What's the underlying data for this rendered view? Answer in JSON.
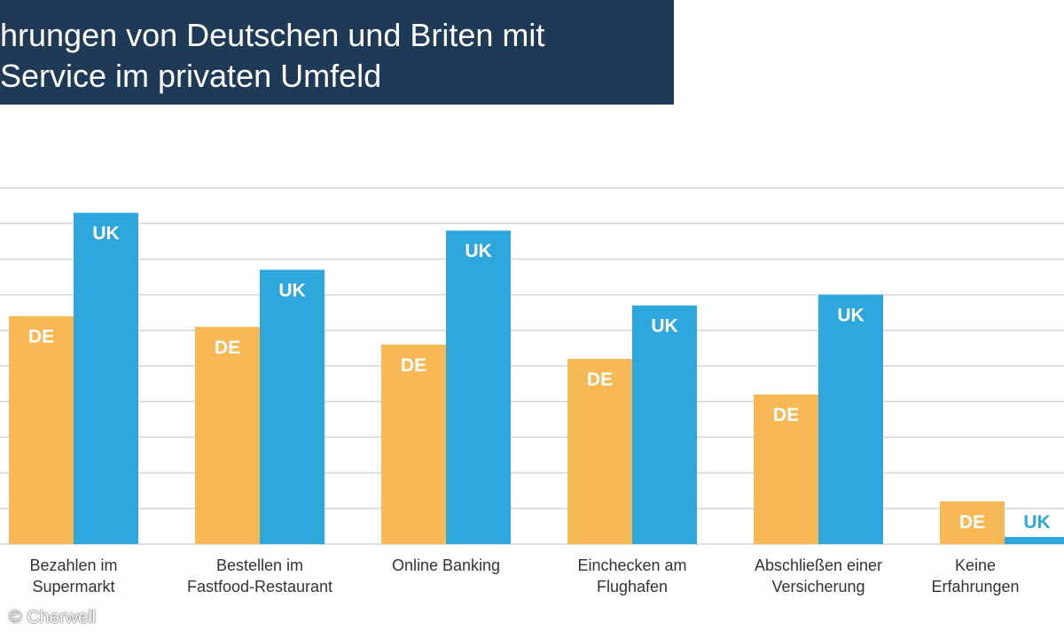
{
  "title": {
    "line1": "hrungen von Deutschen und Briten mit",
    "line2": "Service im privaten Umfeld"
  },
  "copyright": "© Cherwell",
  "colors": {
    "banner": "#1f3a56",
    "de": "#f7b955",
    "uk": "#2ea7dc",
    "grid": "#d6d6d6",
    "bar_label": "#ffffff"
  },
  "chart_data": {
    "type": "bar",
    "categories": [
      [
        "Bezahlen im",
        "Supermarkt"
      ],
      [
        "Bestellen im",
        "Fastfood-Restaurant"
      ],
      [
        "Online Banking"
      ],
      [
        "Einchecken am",
        "Flughafen"
      ],
      [
        "Abschließen einer",
        "Versicherung"
      ],
      [
        "Keine",
        "Erfahrungen"
      ]
    ],
    "series": [
      {
        "name": "DE",
        "values": [
          6.4,
          6.1,
          5.6,
          5.2,
          4.2,
          1.2
        ]
      },
      {
        "name": "UK",
        "values": [
          9.3,
          7.7,
          8.8,
          6.7,
          7.0,
          0.2
        ]
      }
    ],
    "ylim": [
      0,
      10
    ],
    "grid": true
  }
}
